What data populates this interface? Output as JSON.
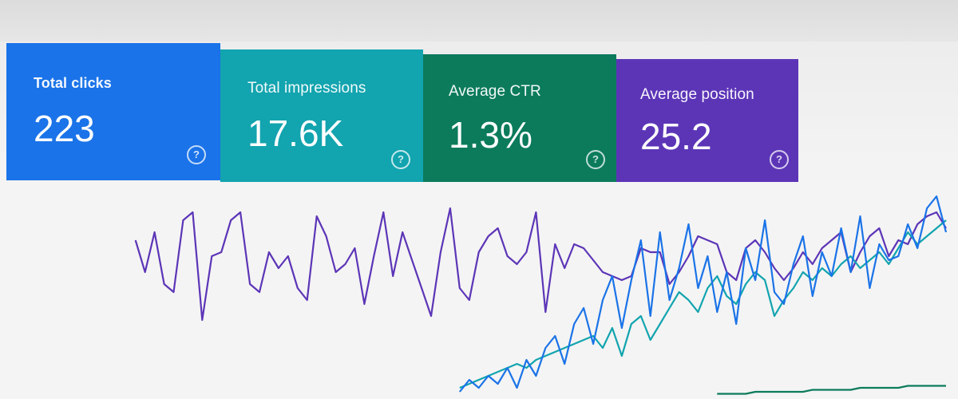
{
  "metrics": [
    {
      "label": "Total clicks",
      "value": "223",
      "color": "#1a73e8"
    },
    {
      "label": "Total impressions",
      "value": "17.6K",
      "color": "#12a4af"
    },
    {
      "label": "Average CTR",
      "value": "1.3%",
      "color": "#0b7b5c"
    },
    {
      "label": "Average position",
      "value": "25.2",
      "color": "#5c35b7"
    }
  ],
  "help_icon": "help-circle-icon",
  "chart_data": {
    "type": "line",
    "x": [
      0,
      1,
      2,
      3,
      4,
      5,
      6,
      7,
      8,
      9,
      10,
      11,
      12,
      13,
      14,
      15,
      16,
      17,
      18,
      19,
      20,
      21,
      22,
      23,
      24,
      25,
      26,
      27,
      28,
      29,
      30,
      31,
      32,
      33,
      34,
      35,
      36,
      37,
      38,
      39,
      40,
      41,
      42,
      43,
      44,
      45,
      46,
      47,
      48,
      49,
      50,
      51,
      52,
      53,
      54,
      55,
      56,
      57,
      58,
      59,
      60,
      61,
      62,
      63,
      64,
      65,
      66,
      67,
      68,
      69,
      70,
      71,
      72,
      73,
      74,
      75,
      76,
      77,
      78,
      79,
      80,
      81,
      82,
      83,
      84,
      85,
      86,
      87,
      88,
      89,
      90
    ],
    "series": [
      {
        "color": "#5c35b7",
        "values": [
          null,
          null,
          null,
          null,
          null,
          78,
          62,
          82,
          56,
          52,
          88,
          92,
          38,
          70,
          72,
          88,
          92,
          56,
          52,
          72,
          64,
          70,
          54,
          48,
          90,
          80,
          62,
          66,
          74,
          46,
          70,
          92,
          60,
          82,
          68,
          54,
          40,
          72,
          94,
          54,
          48,
          72,
          80,
          84,
          70,
          66,
          72,
          92,
          42,
          76,
          64,
          76,
          74,
          68,
          62,
          60,
          58,
          60,
          74,
          72,
          72,
          56,
          62,
          70,
          80,
          78,
          76,
          62,
          58,
          74,
          78,
          72,
          64,
          58,
          64,
          72,
          66,
          74,
          78,
          82,
          62,
          72,
          80,
          84,
          70,
          78,
          76,
          86,
          90,
          92,
          84
        ]
      },
      {
        "color": "#12a4af",
        "values": [
          null,
          null,
          null,
          null,
          null,
          null,
          null,
          null,
          null,
          null,
          null,
          null,
          null,
          null,
          null,
          null,
          null,
          null,
          null,
          null,
          null,
          null,
          null,
          null,
          null,
          null,
          null,
          null,
          null,
          null,
          null,
          null,
          null,
          null,
          null,
          null,
          null,
          null,
          null,
          4,
          6,
          8,
          10,
          12,
          14,
          16,
          14,
          18,
          20,
          22,
          24,
          26,
          28,
          30,
          24,
          34,
          20,
          36,
          40,
          28,
          36,
          44,
          52,
          48,
          42,
          54,
          60,
          50,
          46,
          56,
          62,
          58,
          40,
          48,
          54,
          62,
          58,
          64,
          60,
          66,
          70,
          64,
          68,
          72,
          66,
          74,
          82,
          76,
          80,
          84,
          88
        ]
      },
      {
        "color": "#1a73e8",
        "values": [
          null,
          null,
          null,
          null,
          null,
          null,
          null,
          null,
          null,
          null,
          null,
          null,
          null,
          null,
          null,
          null,
          null,
          null,
          null,
          null,
          null,
          null,
          null,
          null,
          null,
          null,
          null,
          null,
          null,
          null,
          null,
          null,
          null,
          null,
          null,
          null,
          null,
          null,
          null,
          2,
          8,
          4,
          10,
          6,
          14,
          4,
          18,
          10,
          24,
          30,
          16,
          36,
          44,
          26,
          48,
          60,
          34,
          58,
          78,
          40,
          82,
          48,
          64,
          86,
          54,
          70,
          42,
          62,
          36,
          74,
          58,
          88,
          52,
          46,
          66,
          80,
          50,
          72,
          60,
          84,
          62,
          90,
          54,
          76,
          68,
          70,
          86,
          74,
          94,
          100,
          82
        ]
      },
      {
        "color": "#0b7b5c",
        "values": [
          null,
          null,
          null,
          null,
          null,
          null,
          null,
          null,
          null,
          null,
          null,
          null,
          null,
          null,
          null,
          null,
          null,
          null,
          null,
          null,
          null,
          null,
          null,
          null,
          null,
          null,
          null,
          null,
          null,
          null,
          null,
          null,
          null,
          null,
          null,
          null,
          null,
          null,
          null,
          null,
          null,
          null,
          null,
          null,
          null,
          null,
          null,
          null,
          null,
          null,
          null,
          null,
          null,
          null,
          null,
          null,
          null,
          null,
          null,
          null,
          null,
          null,
          null,
          null,
          null,
          null,
          1,
          1,
          1,
          1,
          2,
          2,
          2,
          2,
          2,
          2,
          3,
          3,
          3,
          3,
          3,
          4,
          4,
          4,
          4,
          4,
          5,
          5,
          5,
          5,
          5
        ]
      }
    ],
    "ylim": [
      0,
      100
    ],
    "grid": false,
    "legend": "none"
  }
}
